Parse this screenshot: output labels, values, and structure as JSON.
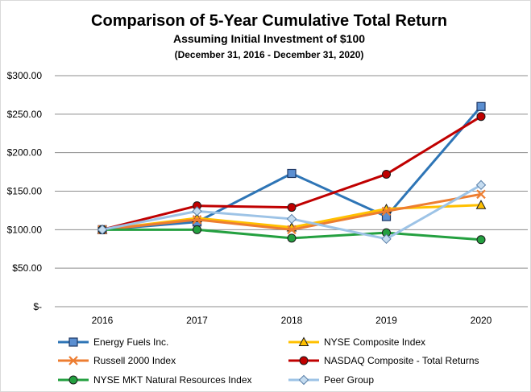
{
  "chart_data": {
    "type": "line",
    "title": "Comparison of 5-Year Cumulative Total Return",
    "subtitle": "Assuming Initial Investment of $100",
    "date_range": "(December 31, 2016 - December 31, 2020)",
    "xlabel": "",
    "ylabel": "",
    "categories": [
      "2016",
      "2017",
      "2018",
      "2019",
      "2020"
    ],
    "ylim": [
      0,
      300
    ],
    "y_ticks": [
      {
        "value": 0,
        "label": "$-"
      },
      {
        "value": 50,
        "label": "$50.00"
      },
      {
        "value": 100,
        "label": "$100.00"
      },
      {
        "value": 150,
        "label": "$150.00"
      },
      {
        "value": 200,
        "label": "$200.00"
      },
      {
        "value": 250,
        "label": "$250.00"
      },
      {
        "value": 300,
        "label": "$300.00"
      }
    ],
    "grid": "horizontal",
    "legend_position": "bottom",
    "series": [
      {
        "name": "Energy Fuels Inc.",
        "values": [
          100,
          110,
          173,
          117,
          260
        ],
        "color": "#2e75b6",
        "marker": "square",
        "marker_fill": "#5b8fd1"
      },
      {
        "name": "NYSE Composite Index",
        "values": [
          100,
          115,
          103,
          127,
          132
        ],
        "color": "#ffc000",
        "marker": "triangle",
        "marker_fill": "#ffc000"
      },
      {
        "name": "Russell 2000 Index",
        "values": [
          100,
          113,
          100,
          124,
          146
        ],
        "color": "#ed7d31",
        "marker": "x",
        "marker_fill": "#ed7d31"
      },
      {
        "name": "NASDAQ Composite - Total Returns",
        "values": [
          100,
          131,
          129,
          172,
          247
        ],
        "color": "#c00000",
        "marker": "circle",
        "marker_fill": "#c00000"
      },
      {
        "name": "NYSE MKT Natural Resources Index",
        "values": [
          100,
          100,
          89,
          96,
          87
        ],
        "color": "#24a040",
        "marker": "circle",
        "marker_fill": "#24a040"
      },
      {
        "name": "Peer Group",
        "values": [
          100,
          124,
          114,
          88,
          158
        ],
        "color": "#9dc3e6",
        "marker": "diamond",
        "marker_fill": "#c5dcf0"
      }
    ]
  }
}
